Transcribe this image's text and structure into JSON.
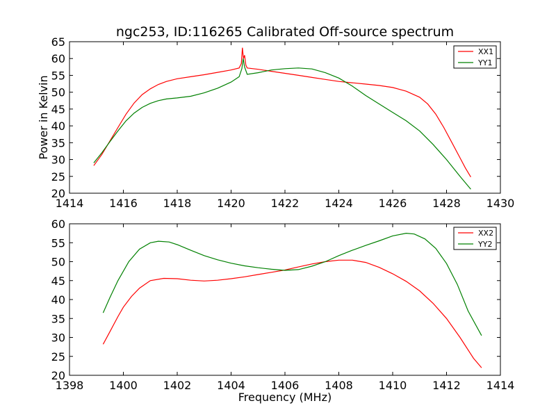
{
  "chart_data": [
    {
      "type": "line",
      "title": "ngc253, ID:116265 Calibrated Off-source spectrum",
      "xlabel": "",
      "ylabel": "Power in Kelvin",
      "xlim": [
        1414,
        1430
      ],
      "ylim": [
        20,
        65
      ],
      "xticks": [
        1414,
        1416,
        1418,
        1420,
        1422,
        1424,
        1426,
        1428,
        1430
      ],
      "yticks": [
        20,
        25,
        30,
        35,
        40,
        45,
        50,
        55,
        60,
        65
      ],
      "grid": false,
      "legend_position": "top-right",
      "series": [
        {
          "name": "XX1",
          "color": "#ff0000",
          "points": [
            [
              1414.9,
              28.2
            ],
            [
              1415.2,
              31.5
            ],
            [
              1415.5,
              35.5
            ],
            [
              1415.8,
              39.5
            ],
            [
              1416.1,
              43.5
            ],
            [
              1416.4,
              46.8
            ],
            [
              1416.7,
              49.3
            ],
            [
              1417.0,
              51.0
            ],
            [
              1417.3,
              52.3
            ],
            [
              1417.6,
              53.2
            ],
            [
              1418.0,
              54.0
            ],
            [
              1418.5,
              54.6
            ],
            [
              1419.0,
              55.2
            ],
            [
              1419.5,
              55.9
            ],
            [
              1420.0,
              56.6
            ],
            [
              1420.3,
              57.2
            ],
            [
              1420.38,
              58.5
            ],
            [
              1420.42,
              63.2
            ],
            [
              1420.46,
              60.0
            ],
            [
              1420.5,
              61.0
            ],
            [
              1420.55,
              58.0
            ],
            [
              1420.6,
              57.2
            ],
            [
              1421.0,
              56.8
            ],
            [
              1421.5,
              56.2
            ],
            [
              1422.0,
              55.6
            ],
            [
              1422.5,
              55.0
            ],
            [
              1423.0,
              54.4
            ],
            [
              1423.5,
              53.8
            ],
            [
              1424.0,
              53.2
            ],
            [
              1424.5,
              52.8
            ],
            [
              1425.0,
              52.4
            ],
            [
              1425.5,
              52.0
            ],
            [
              1426.0,
              51.4
            ],
            [
              1426.5,
              50.3
            ],
            [
              1427.0,
              48.5
            ],
            [
              1427.3,
              46.5
            ],
            [
              1427.6,
              43.5
            ],
            [
              1427.9,
              39.5
            ],
            [
              1428.2,
              35.0
            ],
            [
              1428.5,
              30.5
            ],
            [
              1428.7,
              27.5
            ],
            [
              1428.9,
              24.8
            ]
          ]
        },
        {
          "name": "YY1",
          "color": "#008000",
          "points": [
            [
              1414.9,
              29.0
            ],
            [
              1415.2,
              32.0
            ],
            [
              1415.5,
              35.3
            ],
            [
              1415.8,
              38.5
            ],
            [
              1416.1,
              41.5
            ],
            [
              1416.4,
              43.8
            ],
            [
              1416.7,
              45.5
            ],
            [
              1417.0,
              46.7
            ],
            [
              1417.3,
              47.5
            ],
            [
              1417.6,
              48.0
            ],
            [
              1418.0,
              48.3
            ],
            [
              1418.5,
              48.8
            ],
            [
              1419.0,
              49.8
            ],
            [
              1419.5,
              51.2
            ],
            [
              1420.0,
              53.0
            ],
            [
              1420.3,
              54.6
            ],
            [
              1420.4,
              57.0
            ],
            [
              1420.45,
              60.0
            ],
            [
              1420.5,
              57.5
            ],
            [
              1420.6,
              55.3
            ],
            [
              1421.0,
              55.8
            ],
            [
              1421.5,
              56.6
            ],
            [
              1422.0,
              57.0
            ],
            [
              1422.5,
              57.2
            ],
            [
              1423.0,
              56.9
            ],
            [
              1423.5,
              55.8
            ],
            [
              1424.0,
              54.2
            ],
            [
              1424.5,
              51.8
            ],
            [
              1425.0,
              49.0
            ],
            [
              1425.5,
              46.5
            ],
            [
              1426.0,
              44.0
            ],
            [
              1426.5,
              41.5
            ],
            [
              1427.0,
              38.5
            ],
            [
              1427.5,
              34.5
            ],
            [
              1428.0,
              30.0
            ],
            [
              1428.5,
              25.0
            ],
            [
              1428.9,
              21.2
            ]
          ]
        }
      ]
    },
    {
      "type": "line",
      "title": "",
      "xlabel": "Frequency (MHz)",
      "ylabel": "",
      "xlim": [
        1398,
        1414
      ],
      "ylim": [
        20,
        60
      ],
      "xticks": [
        1398,
        1400,
        1402,
        1404,
        1406,
        1408,
        1410,
        1412,
        1414
      ],
      "yticks": [
        20,
        25,
        30,
        35,
        40,
        45,
        50,
        55,
        60
      ],
      "grid": false,
      "legend_position": "top-right",
      "series": [
        {
          "name": "XX2",
          "color": "#ff0000",
          "points": [
            [
              1399.25,
              28.2
            ],
            [
              1399.5,
              31.5
            ],
            [
              1399.8,
              35.5
            ],
            [
              1400.0,
              38.0
            ],
            [
              1400.3,
              40.8
            ],
            [
              1400.6,
              43.0
            ],
            [
              1401.0,
              45.0
            ],
            [
              1401.5,
              45.6
            ],
            [
              1402.0,
              45.5
            ],
            [
              1402.5,
              45.1
            ],
            [
              1403.0,
              44.9
            ],
            [
              1403.5,
              45.1
            ],
            [
              1404.0,
              45.5
            ],
            [
              1404.5,
              46.0
            ],
            [
              1405.0,
              46.6
            ],
            [
              1405.5,
              47.2
            ],
            [
              1406.0,
              47.8
            ],
            [
              1406.3,
              48.3
            ],
            [
              1406.5,
              48.6
            ],
            [
              1407.0,
              49.4
            ],
            [
              1407.5,
              50.0
            ],
            [
              1408.0,
              50.4
            ],
            [
              1408.5,
              50.4
            ],
            [
              1409.0,
              49.8
            ],
            [
              1409.5,
              48.5
            ],
            [
              1410.0,
              46.8
            ],
            [
              1410.5,
              44.8
            ],
            [
              1411.0,
              42.3
            ],
            [
              1411.5,
              39.0
            ],
            [
              1412.0,
              35.0
            ],
            [
              1412.5,
              30.0
            ],
            [
              1413.0,
              24.5
            ],
            [
              1413.3,
              22.0
            ]
          ]
        },
        {
          "name": "YY2",
          "color": "#008000",
          "points": [
            [
              1399.25,
              36.5
            ],
            [
              1399.5,
              40.5
            ],
            [
              1399.8,
              45.0
            ],
            [
              1400.2,
              50.0
            ],
            [
              1400.6,
              53.3
            ],
            [
              1401.0,
              55.0
            ],
            [
              1401.3,
              55.4
            ],
            [
              1401.7,
              55.2
            ],
            [
              1402.0,
              54.5
            ],
            [
              1402.5,
              53.0
            ],
            [
              1403.0,
              51.6
            ],
            [
              1403.5,
              50.5
            ],
            [
              1404.0,
              49.6
            ],
            [
              1404.5,
              48.9
            ],
            [
              1405.0,
              48.4
            ],
            [
              1405.5,
              48.0
            ],
            [
              1406.0,
              47.7
            ],
            [
              1406.5,
              47.9
            ],
            [
              1407.0,
              48.8
            ],
            [
              1407.5,
              50.0
            ],
            [
              1408.0,
              51.6
            ],
            [
              1408.5,
              53.0
            ],
            [
              1409.0,
              54.3
            ],
            [
              1409.5,
              55.5
            ],
            [
              1410.0,
              56.8
            ],
            [
              1410.5,
              57.5
            ],
            [
              1410.8,
              57.3
            ],
            [
              1411.2,
              56.0
            ],
            [
              1411.6,
              53.5
            ],
            [
              1412.0,
              49.5
            ],
            [
              1412.4,
              44.0
            ],
            [
              1412.8,
              37.0
            ],
            [
              1413.3,
              30.5
            ]
          ]
        }
      ]
    }
  ]
}
